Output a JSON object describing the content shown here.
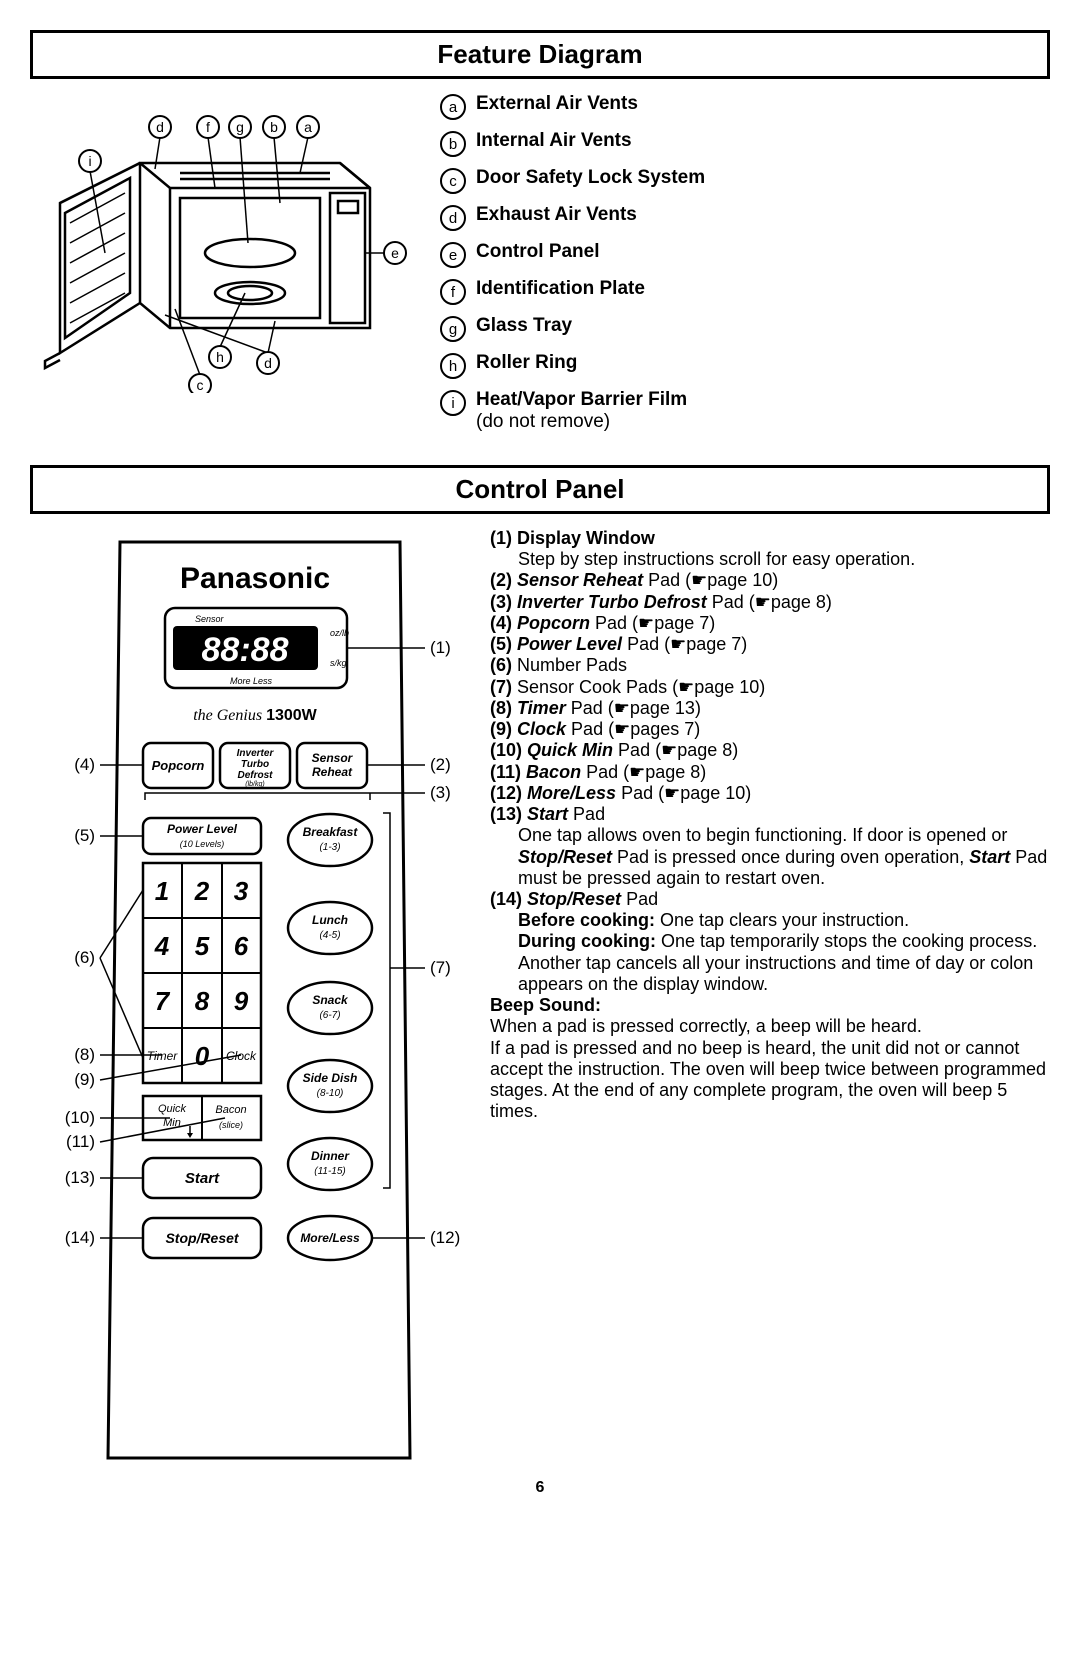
{
  "featureDiagram": {
    "title": "Feature Diagram",
    "legend": [
      {
        "key": "a",
        "label": "External Air Vents",
        "note": ""
      },
      {
        "key": "b",
        "label": "Internal Air Vents",
        "note": ""
      },
      {
        "key": "c",
        "label": "Door Safety Lock System",
        "note": ""
      },
      {
        "key": "d",
        "label": "Exhaust Air Vents",
        "note": ""
      },
      {
        "key": "e",
        "label": "Control Panel",
        "note": ""
      },
      {
        "key": "f",
        "label": "Identification Plate",
        "note": ""
      },
      {
        "key": "g",
        "label": "Glass Tray",
        "note": ""
      },
      {
        "key": "h",
        "label": "Roller Ring",
        "note": ""
      },
      {
        "key": "i",
        "label": "Heat/Vapor Barrier Film",
        "note": "(do not remove)"
      }
    ],
    "callouts": [
      "a",
      "b",
      "c",
      "d",
      "e",
      "f",
      "g",
      "h",
      "i"
    ]
  },
  "controlPanel": {
    "title": "Control Panel",
    "brand": "Panasonic",
    "display": "88:88",
    "displaySensor": "Sensor",
    "displayMoreLess": "More  Less",
    "displayUnits1": "oz/lb",
    "displayUnits2": "s/kg",
    "model": "1300W",
    "modelScript": "the Genius",
    "pads": {
      "popcorn": "Popcorn",
      "inverter": "Inverter\nTurbo\nDefrost",
      "inverterSub": "(lb/kg)",
      "sensor": "Sensor\nReheat",
      "powerLevel": "Power Level",
      "powerLevelSub": "(10 Levels)",
      "breakfast": "Breakfast",
      "breakfastSub": "(1-3)",
      "lunch": "Lunch",
      "lunchSub": "(4-5)",
      "snack": "Snack",
      "snackSub": "(6-7)",
      "sidedish": "Side Dish",
      "sidedishSub": "(8-10)",
      "dinner": "Dinner",
      "dinnerSub": "(11-15)",
      "moreless": "More/Less",
      "timer": "Timer",
      "clock": "Clock",
      "quickmin": "Quick\nMin",
      "bacon": "Bacon",
      "baconSub": "(slice)",
      "start": "Start",
      "stopreset": "Stop/Reset",
      "digits": [
        "1",
        "2",
        "3",
        "4",
        "5",
        "6",
        "7",
        "8",
        "9",
        "0"
      ]
    },
    "callouts": [
      "(1)",
      "(2)",
      "(3)",
      "(4)",
      "(5)",
      "(6)",
      "(7)",
      "(8)",
      "(9)",
      "(10)",
      "(11)",
      "(12)",
      "(13)",
      "(14)"
    ],
    "instructions": [
      {
        "num": "(1)",
        "bold": "Display Window",
        "body": "Step by step instructions scroll for easy operation."
      },
      {
        "num": "(2)",
        "italic": "Sensor Reheat",
        "rest": " Pad (☛page 10)"
      },
      {
        "num": "(3)",
        "italic": "Inverter Turbo Defrost",
        "rest": " Pad (☛page 8)"
      },
      {
        "num": "(4)",
        "italic": "Popcorn",
        "rest": " Pad (☛page 7)"
      },
      {
        "num": "(5)",
        "italic": "Power Level",
        "rest": " Pad (☛page 7)"
      },
      {
        "num": "(6)",
        "plain": "Number Pads"
      },
      {
        "num": "(7)",
        "plain": "Sensor Cook Pads (☛page 10)"
      },
      {
        "num": "(8)",
        "italic": "Timer",
        "rest": " Pad (☛page 13)"
      },
      {
        "num": "(9)",
        "italic": "Clock",
        "rest": " Pad (☛pages 7)"
      },
      {
        "num": "(10)",
        "italic": "Quick Min",
        "rest": " Pad (☛page 8)"
      },
      {
        "num": "(11)",
        "italic": "Bacon",
        "rest": " Pad (☛page 8)"
      },
      {
        "num": "(12)",
        "italic": "More/Less",
        "rest": " Pad (☛page 10)"
      },
      {
        "num": "(13)",
        "italic": "Start",
        "rest": " Pad",
        "body": "One tap allows oven to begin functioning. If door is opened or <b><i>Stop/Reset</i></b> Pad is pressed once during oven operation, <b><i>Start</i></b> Pad must be pressed again to restart oven."
      },
      {
        "num": "(14)",
        "italic": "Stop/Reset",
        "rest": " Pad",
        "body": "<b>Before cooking:</b> One tap clears your instruction.<br><b>During cooking:</b> One tap temporarily stops the cooking process. Another tap cancels all your instructions and time of day or colon appears on the display window."
      }
    ],
    "beep": {
      "title": "Beep Sound:",
      "body": "When a pad is pressed correctly, a beep will be heard.\nIf a pad is pressed and no beep is heard, the unit did not or cannot accept the instruction. The oven will beep twice between programmed stages. At the end of any complete program, the oven will beep 5 times."
    }
  },
  "pageNumber": "6",
  "colors": {
    "ink": "#000000",
    "paper": "#ffffff"
  }
}
